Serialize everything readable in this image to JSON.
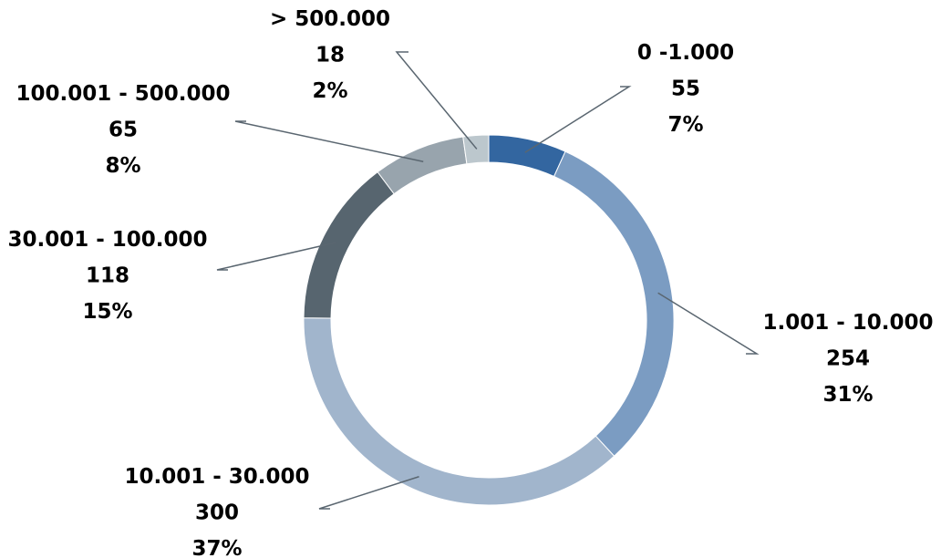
{
  "chart_data": {
    "type": "pie",
    "variant": "donut",
    "title": "",
    "legend": "none",
    "label_format": "category, value, percent",
    "slices": [
      {
        "category": "0 -1.000",
        "value": 55,
        "percent": "7%",
        "color": "#3366a0"
      },
      {
        "category": "1.001 - 10.000",
        "value": 254,
        "percent": "31%",
        "color": "#7b9cc2"
      },
      {
        "category": "10.001 - 30.000",
        "value": 300,
        "percent": "37%",
        "color": "#a1b5cc"
      },
      {
        "category": "30.001 - 100.000",
        "value": 118,
        "percent": "15%",
        "color": "#57656f"
      },
      {
        "category": "100.001 - 500.000",
        "value": 65,
        "percent": "8%",
        "color": "#98a4ad"
      },
      {
        "category": "> 500.000",
        "value": 18,
        "percent": "2%",
        "color": "#bcc7cd"
      }
    ]
  }
}
